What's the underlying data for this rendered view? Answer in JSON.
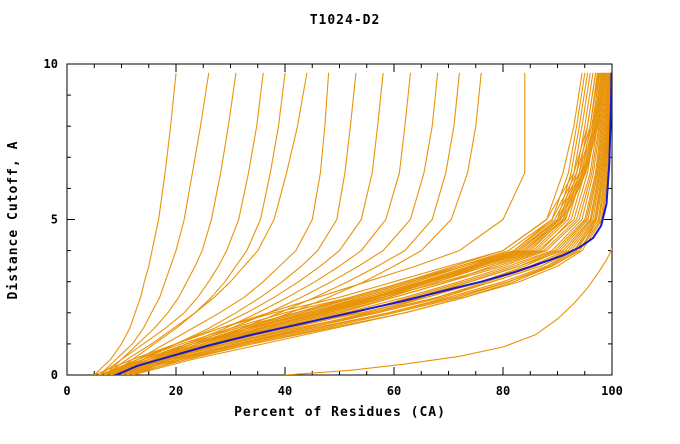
{
  "chart_data": {
    "type": "line",
    "title": "T1024-D2",
    "xlabel": "Percent of Residues (CA)",
    "ylabel": "Distance Cutoff, A",
    "xlim": [
      0,
      100
    ],
    "ylim": [
      0,
      10
    ],
    "xticks": [
      0,
      20,
      40,
      60,
      80,
      100
    ],
    "yticks": [
      0,
      5,
      10
    ],
    "x_minor_step": 5,
    "y_minor_step": 1,
    "grid": false,
    "legend": "none",
    "colors": {
      "model": "#E8940A",
      "highlight": "#1A1AC8",
      "frame": "#000000",
      "background": "#FFFFFF"
    },
    "y_levels": [
      0,
      0.5,
      1,
      1.5,
      2,
      2.5,
      3,
      3.5,
      4,
      5,
      6.5,
      8,
      9.7
    ],
    "model_curves_x": [
      [
        5,
        8,
        10,
        11.5,
        12.5,
        13.5,
        14.2,
        15,
        15.6,
        16.8,
        18,
        19,
        20
      ],
      [
        6,
        9,
        12,
        14,
        15.5,
        17,
        18,
        19,
        20,
        21.5,
        23,
        24.5,
        26
      ],
      [
        7,
        10,
        13,
        16,
        18.5,
        20.5,
        22,
        23.5,
        24.8,
        26.5,
        28.2,
        29.6,
        31
      ],
      [
        6,
        10,
        14,
        18,
        21.5,
        24,
        26,
        27.8,
        29.3,
        31.5,
        33.3,
        34.8,
        36
      ],
      [
        8,
        12,
        16,
        20,
        23.5,
        26.5,
        29,
        31,
        33,
        35.5,
        37.3,
        38.8,
        40
      ],
      [
        7,
        11,
        15.5,
        19.5,
        23.5,
        27,
        30,
        32.5,
        35,
        38,
        40.3,
        42.3,
        44
      ],
      [
        8,
        13,
        18,
        23,
        28,
        32.5,
        36,
        39,
        42,
        45,
        46.5,
        47.3,
        48
      ],
      [
        9,
        14,
        20,
        26,
        31,
        35.5,
        39.5,
        43,
        46,
        49.5,
        51,
        52,
        53
      ],
      [
        8,
        14,
        20,
        27,
        33,
        38,
        42.5,
        46.5,
        50,
        54,
        56,
        57,
        58
      ],
      [
        9,
        15,
        22,
        29,
        35,
        40.5,
        45.5,
        50,
        54,
        58.5,
        61,
        62,
        63
      ],
      [
        10,
        16,
        23,
        30,
        37,
        43,
        48.5,
        53.5,
        58,
        63,
        65.5,
        67,
        68
      ],
      [
        9,
        16,
        24,
        32,
        39,
        45.5,
        51.5,
        57,
        62,
        67,
        69.5,
        71,
        72
      ],
      [
        10,
        17,
        25,
        33,
        41,
        48,
        54.5,
        60,
        65,
        70.5,
        73.5,
        75,
        76
      ],
      [
        5,
        12,
        20,
        28,
        38,
        50,
        60,
        70,
        80,
        88,
        91,
        93,
        94.5
      ],
      [
        6,
        13,
        21,
        30,
        40,
        52,
        62,
        72,
        82,
        89,
        92,
        93.5,
        95
      ],
      [
        7,
        14,
        22,
        31,
        42,
        53,
        63,
        73,
        83,
        90,
        92.5,
        94,
        95.5
      ],
      [
        8,
        15,
        23,
        33,
        44,
        55,
        65,
        74,
        84,
        90.5,
        93,
        94.5,
        96
      ],
      [
        9,
        16,
        24,
        34,
        45,
        56,
        66,
        75,
        85,
        91,
        93.5,
        95,
        96.5
      ],
      [
        10,
        17,
        26,
        36,
        47,
        58,
        67,
        76,
        85.5,
        91.5,
        94,
        95.5,
        97
      ],
      [
        11,
        18,
        27,
        37,
        48,
        59,
        68,
        77,
        86,
        92,
        94.5,
        96,
        97.3
      ],
      [
        12,
        19,
        28,
        38,
        50,
        60,
        70,
        78,
        87,
        92.5,
        95,
        96.5,
        97.6
      ],
      [
        6,
        14,
        23,
        33,
        45,
        57,
        67,
        77,
        86.5,
        93,
        95.5,
        97,
        98
      ],
      [
        7,
        15,
        25,
        35,
        47,
        58,
        69,
        79,
        87.5,
        93.5,
        96,
        97.3,
        98.3
      ],
      [
        8,
        16,
        26,
        37,
        49,
        60,
        70,
        80,
        88,
        94,
        96.3,
        97.6,
        98.5
      ],
      [
        9,
        17,
        27,
        39,
        51,
        62,
        72,
        81,
        89,
        94.5,
        96.6,
        97.8,
        98.7
      ],
      [
        10,
        18,
        29,
        41,
        53,
        63,
        73,
        82,
        89.5,
        95,
        97,
        98,
        98.9
      ],
      [
        11,
        20,
        31,
        43,
        55,
        65,
        74,
        83,
        90,
        95.3,
        97.2,
        98.2,
        99
      ],
      [
        12,
        21,
        32,
        44,
        56,
        66,
        76,
        84,
        90.5,
        95.6,
        97.4,
        98.4,
        99.2
      ],
      [
        6,
        15,
        26,
        38,
        52,
        64,
        74,
        83,
        91,
        96,
        97.6,
        98.6,
        99.3
      ],
      [
        7,
        16,
        28,
        40,
        54,
        66,
        76,
        85,
        91.5,
        96.2,
        97.8,
        98.8,
        99.4
      ],
      [
        8,
        18,
        30,
        42,
        56,
        68,
        77,
        86,
        92,
        96.5,
        98,
        99,
        99.5
      ],
      [
        9,
        19,
        31,
        44,
        57,
        69,
        78,
        87,
        92.5,
        96.8,
        98.2,
        99.1,
        99.6
      ],
      [
        10,
        20,
        33,
        46,
        59,
        70,
        80,
        88,
        93,
        97,
        98.4,
        99.2,
        99.7
      ],
      [
        11,
        22,
        34,
        47,
        60,
        72,
        81,
        88.5,
        93.5,
        97.2,
        98.6,
        99.3,
        99.8
      ],
      [
        12,
        23,
        36,
        49,
        62,
        73,
        82,
        89,
        94,
        97.5,
        98.8,
        99.4,
        99.9
      ],
      [
        7,
        17,
        29,
        42,
        56,
        68,
        78,
        87,
        93,
        97.7,
        99,
        99.5,
        100
      ],
      [
        8,
        19,
        32,
        45,
        59,
        71,
        81,
        89,
        94,
        98,
        99.2,
        99.6,
        100
      ],
      [
        9,
        21,
        34,
        48,
        62,
        73,
        83,
        90,
        94.5,
        98.2,
        99.4,
        99.8,
        100
      ],
      [
        8,
        14,
        22,
        31,
        42,
        52,
        62,
        71,
        80,
        88,
        93,
        95.5,
        97
      ],
      [
        9,
        15,
        23,
        32,
        43,
        53,
        63,
        72,
        81,
        89,
        93.5,
        96,
        97.5
      ],
      [
        10,
        16,
        24,
        33,
        44,
        54,
        64,
        73,
        82,
        89.5,
        94,
        96.3,
        97.8
      ],
      [
        10,
        17,
        25,
        34,
        45,
        55,
        65,
        74,
        82.5,
        90,
        94.3,
        96.6,
        98
      ],
      [
        11,
        17,
        26,
        35,
        46,
        56,
        65.5,
        74.5,
        83,
        90.3,
        94.6,
        96.8,
        98.2
      ],
      [
        11,
        18,
        26.5,
        35.5,
        46.5,
        56.5,
        66,
        75,
        83.5,
        90.6,
        94.8,
        97,
        98.4
      ],
      [
        12,
        18.5,
        27,
        36,
        47,
        57,
        66.5,
        75.5,
        84,
        91,
        95,
        97.2,
        98.6
      ],
      [
        12,
        19,
        28,
        37,
        48,
        58,
        67,
        76,
        84.5,
        91.3,
        95.2,
        97.4,
        98.8
      ],
      [
        7,
        13,
        20,
        28,
        37,
        46,
        55,
        64,
        72,
        80,
        84,
        84,
        84
      ]
    ],
    "model_curves_pts": [
      [
        [
          40,
          0
        ],
        [
          52,
          0.15
        ],
        [
          62,
          0.35
        ],
        [
          72,
          0.6
        ],
        [
          80,
          0.9
        ],
        [
          86,
          1.3
        ],
        [
          90,
          1.8
        ],
        [
          93,
          2.3
        ],
        [
          95.5,
          2.8
        ],
        [
          97.5,
          3.3
        ],
        [
          99,
          3.7
        ],
        [
          100,
          4.05
        ]
      ]
    ],
    "highlight_curve_pts": [
      [
        9,
        0
      ],
      [
        13,
        0.3
      ],
      [
        19,
        0.6
      ],
      [
        26,
        0.95
      ],
      [
        34,
        1.3
      ],
      [
        43,
        1.65
      ],
      [
        52,
        2.0
      ],
      [
        61,
        2.35
      ],
      [
        69,
        2.7
      ],
      [
        76,
        3.0
      ],
      [
        82,
        3.3
      ],
      [
        87,
        3.6
      ],
      [
        91,
        3.85
      ],
      [
        94,
        4.1
      ],
      [
        96.5,
        4.4
      ],
      [
        98,
        4.8
      ],
      [
        99,
        5.5
      ],
      [
        99.5,
        6.8
      ],
      [
        99.8,
        8.5
      ],
      [
        99.9,
        9.7
      ]
    ]
  },
  "layout_labels": {
    "title": "T1024-D2",
    "x_axis": "Percent of Residues (CA)",
    "y_axis": "Distance Cutoff, A"
  }
}
